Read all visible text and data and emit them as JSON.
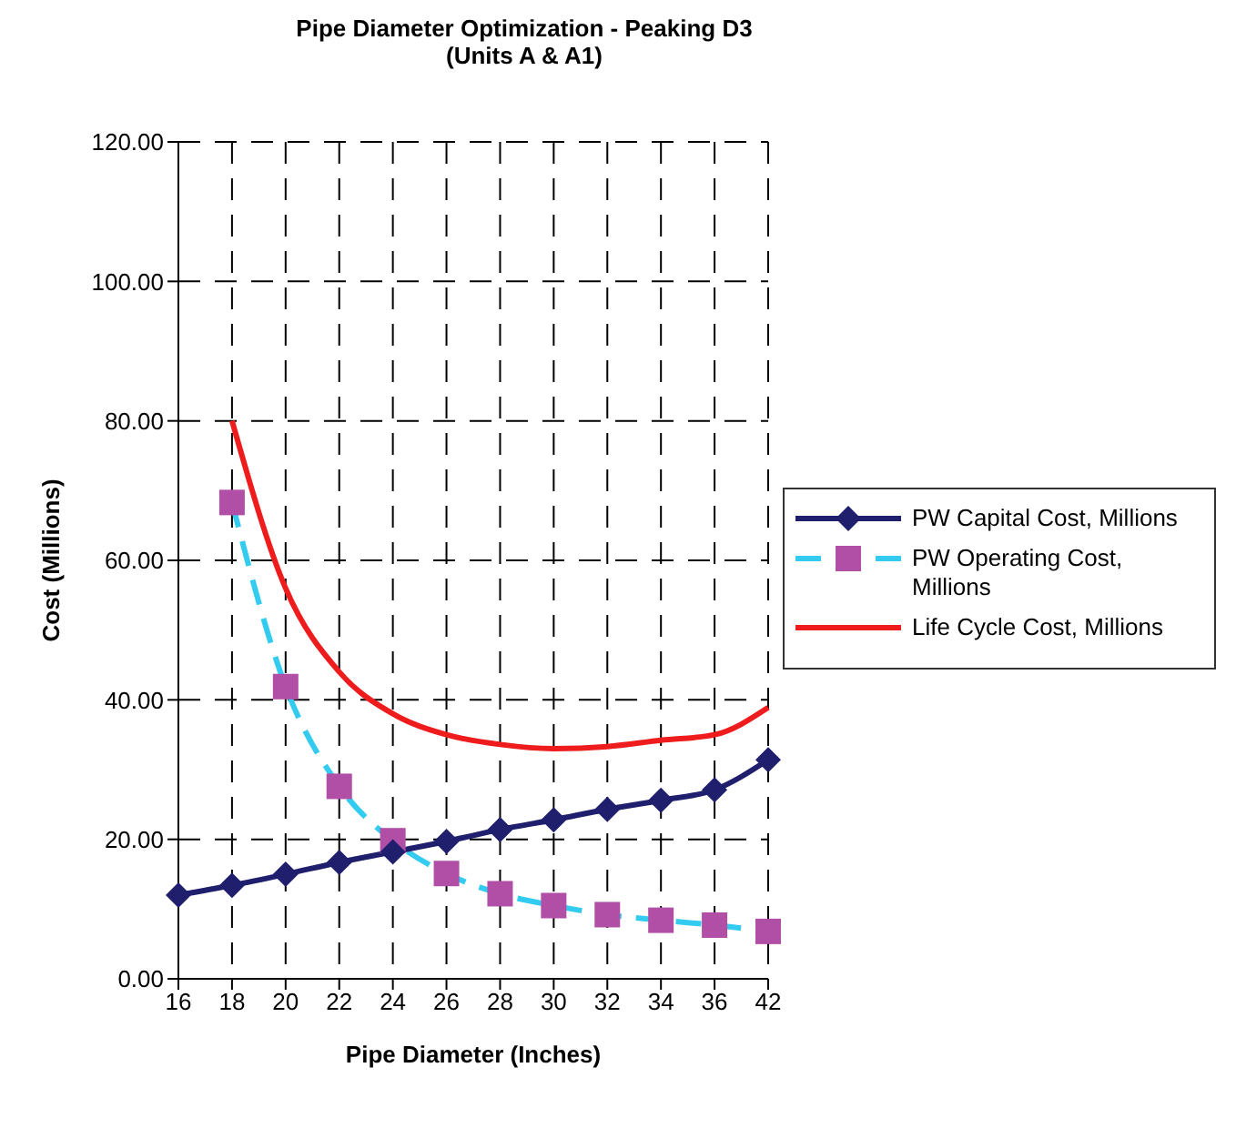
{
  "chart_data": {
    "type": "line",
    "title": "Pipe Diameter Optimization - Peaking D3",
    "subtitle": "(Units A & A1)",
    "xlabel": "Pipe Diameter (Inches)",
    "ylabel": "Cost (Millions)",
    "categories": [
      "16",
      "18",
      "20",
      "22",
      "24",
      "26",
      "28",
      "30",
      "32",
      "34",
      "36",
      "42"
    ],
    "series": [
      {
        "name": "PW Capital Cost, Millions",
        "color": "#1f1f6e",
        "marker": "diamond",
        "line_style": "solid",
        "values": [
          12.0,
          13.4,
          15.0,
          16.7,
          18.2,
          19.7,
          21.4,
          22.8,
          24.3,
          25.6,
          27.1,
          31.4
        ]
      },
      {
        "name": "PW Operating Cost, Millions",
        "color": "#33ccf0",
        "marker": "square",
        "colors": [
          "#b04fa5",
          "#b04fa5",
          "#b04fa5",
          "#b04fa5",
          "#b04fa5",
          "#b04fa5",
          "#b04fa5",
          "#b04fa5",
          "#b04fa5",
          "#b04fa5",
          "#b04fa5",
          "#b04fa5"
        ],
        "line_style": "dashed",
        "values": [
          null,
          68.3,
          41.9,
          27.6,
          19.8,
          15.1,
          12.2,
          10.5,
          9.2,
          8.4,
          7.7,
          6.8
        ]
      },
      {
        "name": "Life Cycle Cost, Millions",
        "color": "#ee1c1c",
        "marker": "none",
        "line_style": "solid",
        "values": [
          null,
          80,
          56,
          44,
          38,
          35,
          33.6,
          33.0,
          33.3,
          34.2,
          35.0,
          38.9
        ]
      }
    ],
    "ylim": [
      0,
      120
    ],
    "yticks": [
      {
        "value": 0,
        "label": "0.00"
      },
      {
        "value": 20,
        "label": "20.00"
      },
      {
        "value": 40,
        "label": "40.00"
      },
      {
        "value": 60,
        "label": "60.00"
      },
      {
        "value": 80,
        "label": "80.00"
      },
      {
        "value": 100,
        "label": "100.00"
      },
      {
        "value": 120,
        "label": "120.00"
      }
    ],
    "grid": true,
    "legend": "right"
  }
}
